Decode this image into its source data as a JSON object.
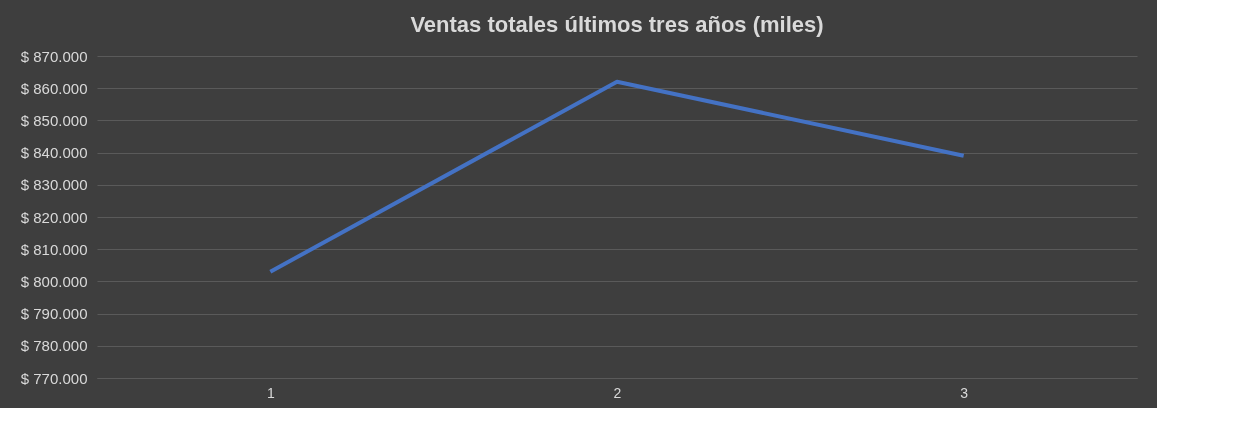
{
  "chart_data": {
    "type": "line",
    "title": "Ventas totales últimos tres años (miles)",
    "categories": [
      "1",
      "2",
      "3"
    ],
    "series": [
      {
        "color": "#4472c4",
        "values": [
          803000,
          862000,
          839000
        ]
      }
    ],
    "ylim": [
      770000,
      870000
    ],
    "yticks": [
      {
        "value": 770000,
        "label": "$ 770.000"
      },
      {
        "value": 780000,
        "label": "$ 780.000"
      },
      {
        "value": 790000,
        "label": "$ 790.000"
      },
      {
        "value": 800000,
        "label": "$ 800.000"
      },
      {
        "value": 810000,
        "label": "$ 810.000"
      },
      {
        "value": 820000,
        "label": "$ 820.000"
      },
      {
        "value": 830000,
        "label": "$ 830.000"
      },
      {
        "value": 840000,
        "label": "$ 840.000"
      },
      {
        "value": 850000,
        "label": "$ 850.000"
      },
      {
        "value": 860000,
        "label": "$ 860.000"
      },
      {
        "value": 870000,
        "label": "$ 870.000"
      }
    ],
    "grid": "y",
    "legend": false,
    "marker": "none",
    "line_style": "solid"
  }
}
